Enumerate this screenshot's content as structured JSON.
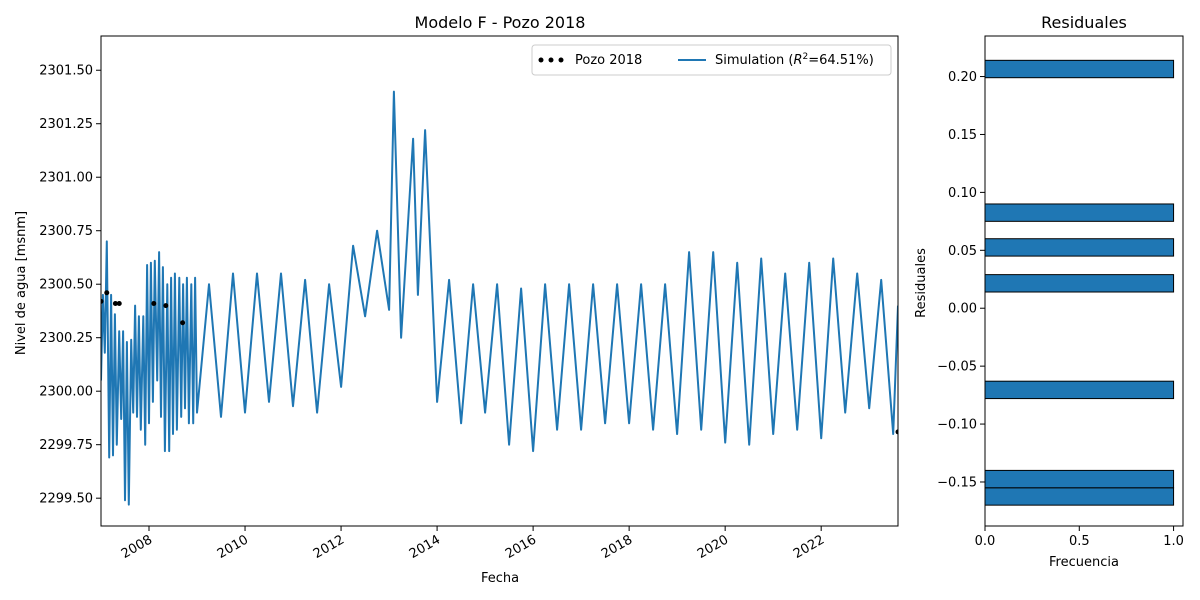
{
  "chart_data": [
    {
      "type": "line",
      "title": "Modelo F - Pozo 2018",
      "xlabel": "Fecha",
      "ylabel": "Nivel de agua [msnm]",
      "xlim": [
        2007.0,
        2023.6
      ],
      "ylim": [
        2299.37,
        2301.66
      ],
      "xticks": [
        2008,
        2010,
        2012,
        2014,
        2016,
        2018,
        2020,
        2022
      ],
      "xtick_labels": [
        "2008",
        "2010",
        "2012",
        "2014",
        "2016",
        "2018",
        "2020",
        "2022"
      ],
      "yticks": [
        2299.5,
        2299.75,
        2300.0,
        2300.25,
        2300.5,
        2300.75,
        2301.0,
        2301.25,
        2301.5
      ],
      "ytick_labels": [
        "2299.50",
        "2299.75",
        "2300.00",
        "2300.25",
        "2300.50",
        "2300.75",
        "2301.00",
        "2301.25",
        "2301.50"
      ],
      "legend": {
        "position": "top-right",
        "observed_label": "Pozo 2018",
        "simulation_label": "Simulation (",
        "r2_base": "R",
        "r2_exp": "2",
        "r2_value": "=64.51%)"
      },
      "observed": {
        "color": "#000000",
        "x": [
          2007.0,
          2007.12,
          2007.3,
          2007.38,
          2008.1,
          2008.35,
          2008.7,
          2023.6
        ],
        "y": [
          2300.42,
          2300.46,
          2300.41,
          2300.41,
          2300.41,
          2300.4,
          2300.32,
          2299.81
        ]
      },
      "simulation": {
        "color": "#1f77b4",
        "x": [
          2007.0,
          2007.04,
          2007.08,
          2007.12,
          2007.17,
          2007.21,
          2007.25,
          2007.29,
          2007.33,
          2007.38,
          2007.42,
          2007.46,
          2007.5,
          2007.54,
          2007.58,
          2007.63,
          2007.67,
          2007.71,
          2007.75,
          2007.79,
          2007.83,
          2007.88,
          2007.92,
          2007.96,
          2008.0,
          2008.04,
          2008.08,
          2008.12,
          2008.17,
          2008.21,
          2008.25,
          2008.29,
          2008.33,
          2008.38,
          2008.42,
          2008.46,
          2008.5,
          2008.54,
          2008.58,
          2008.63,
          2008.67,
          2008.71,
          2008.75,
          2008.79,
          2008.83,
          2008.88,
          2008.92,
          2008.96,
          2009.0,
          2009.25,
          2009.5,
          2009.75,
          2010.0,
          2010.25,
          2010.5,
          2010.75,
          2011.0,
          2011.25,
          2011.5,
          2011.75,
          2012.0,
          2012.25,
          2012.5,
          2012.75,
          2013.0,
          2013.1,
          2013.25,
          2013.5,
          2013.6,
          2013.75,
          2014.0,
          2014.25,
          2014.5,
          2014.75,
          2015.0,
          2015.25,
          2015.5,
          2015.75,
          2016.0,
          2016.25,
          2016.5,
          2016.75,
          2017.0,
          2017.25,
          2017.5,
          2017.75,
          2018.0,
          2018.25,
          2018.5,
          2018.75,
          2019.0,
          2019.25,
          2019.5,
          2019.75,
          2020.0,
          2020.25,
          2020.5,
          2020.75,
          2021.0,
          2021.25,
          2021.5,
          2021.75,
          2022.0,
          2022.25,
          2022.5,
          2022.75,
          2023.0,
          2023.25,
          2023.5,
          2023.6
        ],
        "y": [
          2300.05,
          2300.45,
          2300.18,
          2300.7,
          2299.69,
          2300.45,
          2299.7,
          2300.36,
          2299.75,
          2300.28,
          2299.87,
          2300.28,
          2299.49,
          2300.23,
          2299.47,
          2300.24,
          2299.9,
          2300.4,
          2299.88,
          2300.35,
          2299.82,
          2300.35,
          2299.75,
          2300.59,
          2299.85,
          2300.6,
          2299.95,
          2300.61,
          2300.05,
          2300.65,
          2299.88,
          2300.58,
          2299.72,
          2300.5,
          2299.72,
          2300.53,
          2299.8,
          2300.55,
          2299.82,
          2300.53,
          2299.88,
          2300.5,
          2299.92,
          2300.53,
          2299.85,
          2300.5,
          2299.85,
          2300.53,
          2299.9,
          2300.5,
          2299.88,
          2300.55,
          2299.9,
          2300.55,
          2299.95,
          2300.55,
          2299.93,
          2300.52,
          2299.9,
          2300.5,
          2300.02,
          2300.68,
          2300.35,
          2300.75,
          2300.38,
          2301.4,
          2300.25,
          2301.18,
          2300.45,
          2301.22,
          2299.95,
          2300.52,
          2299.85,
          2300.5,
          2299.9,
          2300.5,
          2299.75,
          2300.48,
          2299.72,
          2300.5,
          2299.82,
          2300.5,
          2299.82,
          2300.5,
          2299.85,
          2300.5,
          2299.85,
          2300.5,
          2299.82,
          2300.5,
          2299.8,
          2300.65,
          2299.82,
          2300.65,
          2299.76,
          2300.6,
          2299.75,
          2300.62,
          2299.8,
          2300.55,
          2299.82,
          2300.6,
          2299.78,
          2300.62,
          2299.9,
          2300.55,
          2299.92,
          2300.52,
          2299.8,
          2300.4
        ]
      }
    },
    {
      "type": "bar",
      "orientation": "horizontal",
      "title": "Residuales",
      "xlabel": "Frecuencia",
      "ylabel": "Residuales",
      "xlim": [
        0,
        1.05
      ],
      "ylim": [
        -0.188,
        0.235
      ],
      "xticks": [
        0,
        0.5,
        1.0
      ],
      "xtick_labels": [
        "0.0",
        "0.5",
        "1.0"
      ],
      "yticks": [
        -0.15,
        -0.1,
        -0.05,
        0.0,
        0.05,
        0.1,
        0.15,
        0.2
      ],
      "ytick_labels": [
        "−0.15",
        "−0.10",
        "−0.05",
        "0.00",
        "0.05",
        "0.10",
        "0.15",
        "0.20"
      ],
      "bar_color": "#1f77b4",
      "edge_color": "#000000",
      "bins": [
        {
          "low": -0.17,
          "high": -0.155,
          "count": 1
        },
        {
          "low": -0.155,
          "high": -0.14,
          "count": 1
        },
        {
          "low": -0.078,
          "high": -0.063,
          "count": 1
        },
        {
          "low": 0.014,
          "high": 0.029,
          "count": 1
        },
        {
          "low": 0.045,
          "high": 0.06,
          "count": 1
        },
        {
          "low": 0.075,
          "high": 0.09,
          "count": 1
        },
        {
          "low": 0.199,
          "high": 0.214,
          "count": 1
        }
      ]
    }
  ]
}
